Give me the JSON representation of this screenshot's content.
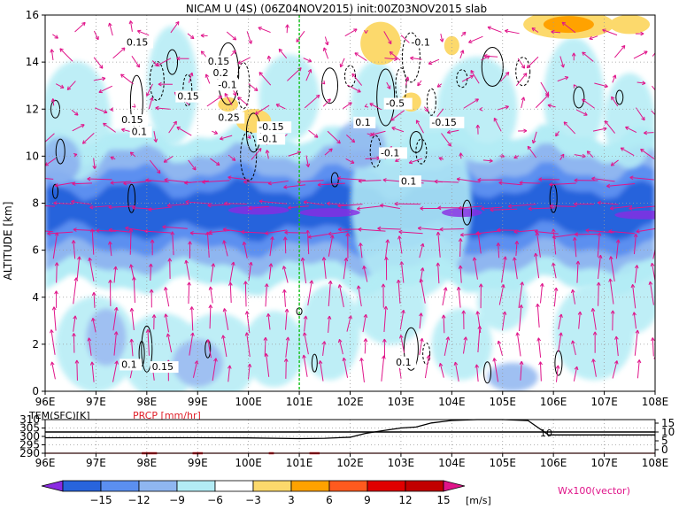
{
  "chart_data": [
    {
      "type": "heatmap",
      "title": "NICAM U (4S) (06Z04NOV2015) init:00Z03NOV2015 slab",
      "xlabel": "",
      "ylabel": "ALTITUDE [km]",
      "x_ticks": [
        "96E",
        "97E",
        "98E",
        "99E",
        "100E",
        "101E",
        "102E",
        "103E",
        "104E",
        "105E",
        "106E",
        "107E",
        "108E"
      ],
      "x_range": [
        96,
        108
      ],
      "y_ticks": [
        "0",
        "2",
        "4",
        "6",
        "8",
        "10",
        "12",
        "14",
        "16"
      ],
      "y_range": [
        0,
        16
      ],
      "marker_line_lon": 101,
      "contour_labels": [
        "0.1",
        "0.15",
        "0.2",
        "0.15",
        "-0.1",
        "0.15",
        "0.25",
        "-0.15",
        "-0.1",
        "0.1",
        "-0.1",
        "-0.15",
        "0.15",
        "0.1",
        "-0.1",
        "0.1",
        "0.15",
        "0.1",
        "0.1",
        "-0.5"
      ],
      "contour_label_text": {
        "a": "0.1",
        "b": "0.15",
        "c": "0.2",
        "d": "0.15",
        "e": "-0.1",
        "f": "0.15",
        "g": "0.25",
        "h": "-0.15",
        "i": "-0.1",
        "j": "0.1",
        "k": "-0.1",
        "l": "-0.15",
        "m": "0.15",
        "n": "0.1",
        "o": "-0.1",
        "p": "0.1",
        "q": "0.15",
        "r": "0.1",
        "s": "-0.5",
        "t": "0.1"
      },
      "wind_bands": [
        {
          "alt_center": 7.7,
          "half_width": 0.9,
          "level": -12
        },
        {
          "alt_center": 7.7,
          "half_width": 1.6,
          "level": -9
        },
        {
          "alt_center": 7.7,
          "half_width": 2.4,
          "level": -6
        },
        {
          "alt_center": 7.7,
          "half_width": 3.2,
          "level": -3
        }
      ]
    },
    {
      "type": "line",
      "series": [
        {
          "name": "TEM(SFC)[K]",
          "color": "#000000"
        },
        {
          "name": "PRCP [mm/hr]",
          "color": "#e0202a"
        }
      ],
      "left_ticks": [
        "310",
        "305",
        "300",
        "295",
        "290"
      ],
      "right_ticks": [
        "15",
        "10",
        "5",
        "0"
      ],
      "x_ticks": [
        "96E",
        "97E",
        "98E",
        "99E",
        "100E",
        "101E",
        "102E",
        "103E",
        "104E",
        "105E",
        "106E",
        "107E",
        "108E"
      ],
      "tem_series": [
        {
          "lon": 96.0,
          "val": 299.2
        },
        {
          "lon": 97.0,
          "val": 299.2
        },
        {
          "lon": 98.0,
          "val": 299.2
        },
        {
          "lon": 99.0,
          "val": 299.2
        },
        {
          "lon": 100.0,
          "val": 299.1
        },
        {
          "lon": 101.0,
          "val": 298.7
        },
        {
          "lon": 101.5,
          "val": 298.9
        },
        {
          "lon": 102.0,
          "val": 299.5
        },
        {
          "lon": 102.3,
          "val": 301.8
        },
        {
          "lon": 102.6,
          "val": 303.2
        },
        {
          "lon": 103.0,
          "val": 305.0
        },
        {
          "lon": 103.3,
          "val": 305.6
        },
        {
          "lon": 103.6,
          "val": 308.0
        },
        {
          "lon": 104.0,
          "val": 309.5
        },
        {
          "lon": 104.5,
          "val": 310.0
        },
        {
          "lon": 105.0,
          "val": 310.0
        },
        {
          "lon": 105.5,
          "val": 309.4
        },
        {
          "lon": 105.9,
          "val": 301.0
        },
        {
          "lon": 106.0,
          "val": 300.9
        },
        {
          "lon": 107.0,
          "val": 300.9
        },
        {
          "lon": 108.0,
          "val": 300.9
        }
      ],
      "right_axis_label": "10"
    },
    {
      "type": "table",
      "colorbar_ticks": [
        "−15",
        "−12",
        "−9",
        "−6",
        "−3",
        "3",
        "6",
        "9",
        "12",
        "15"
      ],
      "colorbar_unit": "[m/s]",
      "vector_label": "Wx100(vector)",
      "colors": [
        "#8a2be2",
        "#2864dc",
        "#5b8ff0",
        "#8fb6f0",
        "#b3ecf5",
        "#ffffff",
        "#fcd96c",
        "#ffa200",
        "#ff5a1e",
        "#e00000",
        "#c10000",
        "#e0158a"
      ]
    }
  ]
}
